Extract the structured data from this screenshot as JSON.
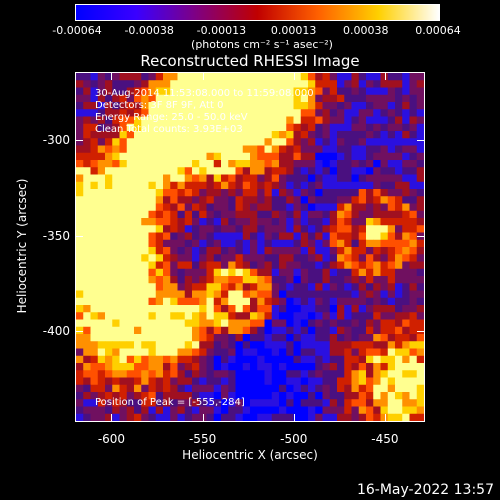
{
  "colorbar": {
    "ticks": [
      "-0.00064",
      "-0.00038",
      "-0.00013",
      "0.00013",
      "0.00038",
      "0.00064"
    ],
    "unit_label": "(photons cm⁻² s⁻¹ asec⁻²)",
    "colors": [
      "#0000ff",
      "#3a00ff",
      "#800080",
      "#c00000",
      "#ff6000",
      "#ffd000",
      "#ffffff"
    ]
  },
  "title": "Reconstructed RHESSI Image",
  "info": {
    "line1": "30-Aug-2014 11:53:08.000 to 11:59:08.000",
    "line2": "Detectors: 3F 8F 9F, Att 0",
    "line3": "Energy Range: 25.0 - 50.0 keV",
    "line4": "Clean    Total counts: 3.93E+03"
  },
  "peak": "Position of Peak = [-555,-284]",
  "x_axis": {
    "label": "Heliocentric X (arcsec)",
    "ticks": [
      "-600",
      "-550",
      "-500",
      "-450"
    ],
    "tick_values": [
      -600,
      -550,
      -500,
      -450
    ],
    "range": [
      -620,
      -428
    ]
  },
  "y_axis": {
    "label": "Heliocentric Y (arcsec)",
    "ticks": [
      "-300",
      "-350",
      "-400"
    ],
    "tick_values": [
      -300,
      -350,
      -400
    ],
    "range": [
      -448,
      -264
    ]
  },
  "footer_date": "16-May-2022 13:57"
}
